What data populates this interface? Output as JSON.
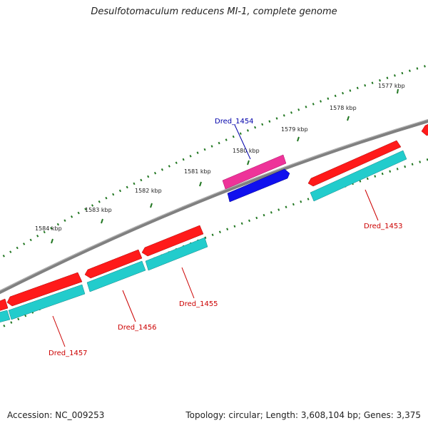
{
  "title": "Desulfotomaculum reducens MI-1, complete genome",
  "footer": {
    "accession": "Accession: NC_009253",
    "topology": "Topology: circular; Length: 3,608,104 bp; Genes: 3,375"
  },
  "ticks": [
    "1577 kbp",
    "1578 kbp",
    "1579 kbp",
    "1580 kbp",
    "1581 kbp",
    "1582 kbp",
    "1583 kbp",
    "1584 kbp"
  ],
  "genes": [
    {
      "name": "Dred_1453",
      "color": "#cc0000"
    },
    {
      "name": "Dred_1454",
      "color": "#0000aa"
    },
    {
      "name": "Dred_1455",
      "color": "#cc0000"
    },
    {
      "name": "Dred_1456",
      "color": "#cc0000"
    },
    {
      "name": "Dred_1457",
      "color": "#cc0000"
    }
  ],
  "colors": {
    "backbone": "#808080",
    "forward_cds": "#ff1a1a",
    "reverse_cds": "#1010ee",
    "forward_annotation": "#22cccc",
    "reverse_annotation": "#ee3399",
    "ticks": "#227722"
  }
}
